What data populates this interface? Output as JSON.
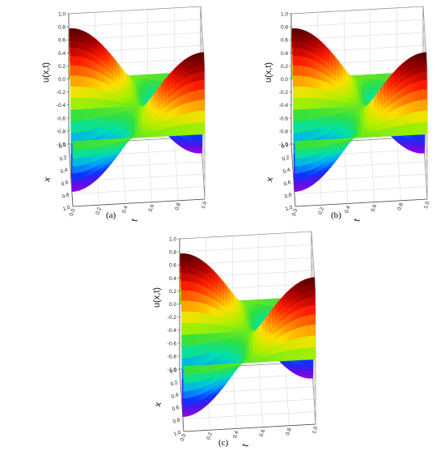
{
  "panel_labels": [
    "(a)",
    "(b)",
    "(c)"
  ],
  "chart_data": [
    {
      "type": "surface3d",
      "panel": "(a)",
      "zlabel": "u(x,t)",
      "xlabel": "x",
      "tlabel": "t",
      "zlim": [
        -1.0,
        1.0
      ],
      "xlim": [
        0.0,
        1.0
      ],
      "tlim": [
        0.0,
        1.0
      ],
      "z_ticks": [
        "1.0",
        "0.8",
        "0.6",
        "0.4",
        "0.2",
        "0.0",
        "-0.2",
        "-0.4",
        "-0.6",
        "-0.8",
        "-1.0"
      ],
      "x_ticks": [
        "0.0",
        "0.2",
        "0.4",
        "0.6",
        "0.8",
        "1.0"
      ],
      "t_ticks": [
        "0.0",
        "0.2",
        "0.4",
        "0.6",
        "0.8",
        "1.0"
      ],
      "grid": true,
      "surface": "sin(2*pi*x)*cos(pi*t)",
      "colormap": [
        "#5a0000",
        "#a80000",
        "#ff1c00",
        "#ff7a00",
        "#ffe000",
        "#a8f000",
        "#30e040",
        "#00e0b0",
        "#00a0ff",
        "#1030ff",
        "#6010e0",
        "#a000ff"
      ]
    },
    {
      "type": "surface3d",
      "panel": "(b)",
      "zlabel": "u(x,t)",
      "xlabel": "x",
      "tlabel": "t",
      "zlim": [
        -1.0,
        1.0
      ],
      "xlim": [
        0.0,
        1.0
      ],
      "tlim": [
        0.0,
        1.0
      ],
      "z_ticks": [
        "1.0",
        "0.8",
        "0.6",
        "0.4",
        "0.2",
        "0.0",
        "-0.2",
        "-0.4",
        "-0.6",
        "-0.8",
        "-1.0"
      ],
      "x_ticks": [
        "0.0",
        "0.2",
        "0.4",
        "0.6",
        "0.8",
        "1.0"
      ],
      "t_ticks": [
        "0.0",
        "0.2",
        "0.4",
        "0.6",
        "0.8",
        "1.0"
      ],
      "grid": true,
      "surface": "sin(2*pi*x)*cos(pi*t)",
      "colormap": [
        "#5a0000",
        "#a80000",
        "#ff1c00",
        "#ff7a00",
        "#ffe000",
        "#a8f000",
        "#30e040",
        "#00e0b0",
        "#00a0ff",
        "#1030ff",
        "#6010e0",
        "#a000ff"
      ]
    },
    {
      "type": "surface3d",
      "panel": "(c)",
      "zlabel": "u(x,t)",
      "xlabel": "x",
      "tlabel": "t",
      "zlim": [
        -1.0,
        1.0
      ],
      "xlim": [
        0.0,
        1.0
      ],
      "tlim": [
        0.0,
        1.0
      ],
      "z_ticks": [
        "1.0",
        "0.8",
        "0.6",
        "0.4",
        "0.2",
        "0.0",
        "-0.2",
        "-0.4",
        "-0.6",
        "-0.8",
        "-1.0"
      ],
      "x_ticks": [
        "0.0",
        "0.2",
        "0.4",
        "0.6",
        "0.8",
        "1.0"
      ],
      "t_ticks": [
        "0.0",
        "0.2",
        "0.4",
        "0.6",
        "0.8",
        "1.0"
      ],
      "grid": true,
      "surface": "sin(2*pi*x)*cos(pi*t)",
      "colormap": [
        "#5a0000",
        "#a80000",
        "#ff1c00",
        "#ff7a00",
        "#ffe000",
        "#a8f000",
        "#30e040",
        "#00e0b0",
        "#00a0ff",
        "#1030ff",
        "#6010e0",
        "#a000ff"
      ]
    }
  ]
}
